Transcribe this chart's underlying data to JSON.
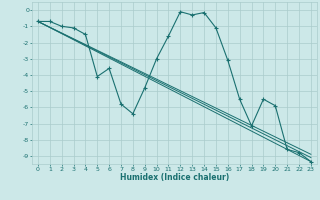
{
  "background_color": "#cce8e8",
  "grid_color": "#aacccc",
  "line_color": "#1a7070",
  "xlabel": "Humidex (Indice chaleur)",
  "xlim": [
    -0.5,
    23.5
  ],
  "ylim": [
    -9.5,
    0.5
  ],
  "yticks": [
    0,
    -1,
    -2,
    -3,
    -4,
    -5,
    -6,
    -7,
    -8,
    -9
  ],
  "xticks": [
    0,
    1,
    2,
    3,
    4,
    5,
    6,
    7,
    8,
    9,
    10,
    11,
    12,
    13,
    14,
    15,
    16,
    17,
    18,
    19,
    20,
    21,
    22,
    23
  ],
  "main_series": {
    "x": [
      0,
      1,
      2,
      3,
      4,
      5,
      6,
      7,
      8,
      9,
      10,
      11,
      12,
      13,
      14,
      15,
      16,
      17,
      18,
      19,
      20,
      21,
      22,
      23
    ],
    "y": [
      -0.7,
      -0.7,
      -1.0,
      -1.1,
      -1.5,
      -4.1,
      -3.6,
      -5.8,
      -6.4,
      -4.8,
      -3.0,
      -1.6,
      -0.1,
      -0.3,
      -0.15,
      -1.1,
      -3.1,
      -5.5,
      -7.15,
      -5.5,
      -5.9,
      -8.6,
      -8.8,
      -9.35
    ]
  },
  "regression_lines": [
    {
      "x": [
        0,
        23
      ],
      "y": [
        -0.7,
        -9.35
      ]
    },
    {
      "x": [
        0,
        23
      ],
      "y": [
        -0.7,
        -9.1
      ]
    },
    {
      "x": [
        0,
        23
      ],
      "y": [
        -0.7,
        -8.9
      ]
    }
  ]
}
